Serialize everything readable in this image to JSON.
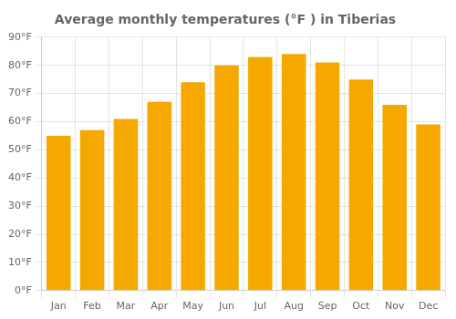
{
  "chart_data": {
    "type": "bar",
    "title": "Average monthly temperatures (°F ) in Tiberias",
    "categories": [
      "Jan",
      "Feb",
      "Mar",
      "Apr",
      "May",
      "Jun",
      "Jul",
      "Aug",
      "Sep",
      "Oct",
      "Nov",
      "Dec"
    ],
    "values": [
      55,
      57,
      61,
      67,
      74,
      80,
      83,
      84,
      81,
      75,
      66,
      59
    ],
    "color": "#F5A800",
    "ylim": [
      0,
      90
    ],
    "yticks": [
      {
        "value": 0,
        "label": "0°F"
      },
      {
        "value": 10,
        "label": "10°F"
      },
      {
        "value": 20,
        "label": "20°F"
      },
      {
        "value": 30,
        "label": "30°F"
      },
      {
        "value": 40,
        "label": "40°F"
      },
      {
        "value": 50,
        "label": "50°F"
      },
      {
        "value": 60,
        "label": "60°F"
      },
      {
        "value": 70,
        "label": "70°F"
      },
      {
        "value": 80,
        "label": "80°F"
      },
      {
        "value": 90,
        "label": "90°F"
      }
    ],
    "grid": true
  }
}
